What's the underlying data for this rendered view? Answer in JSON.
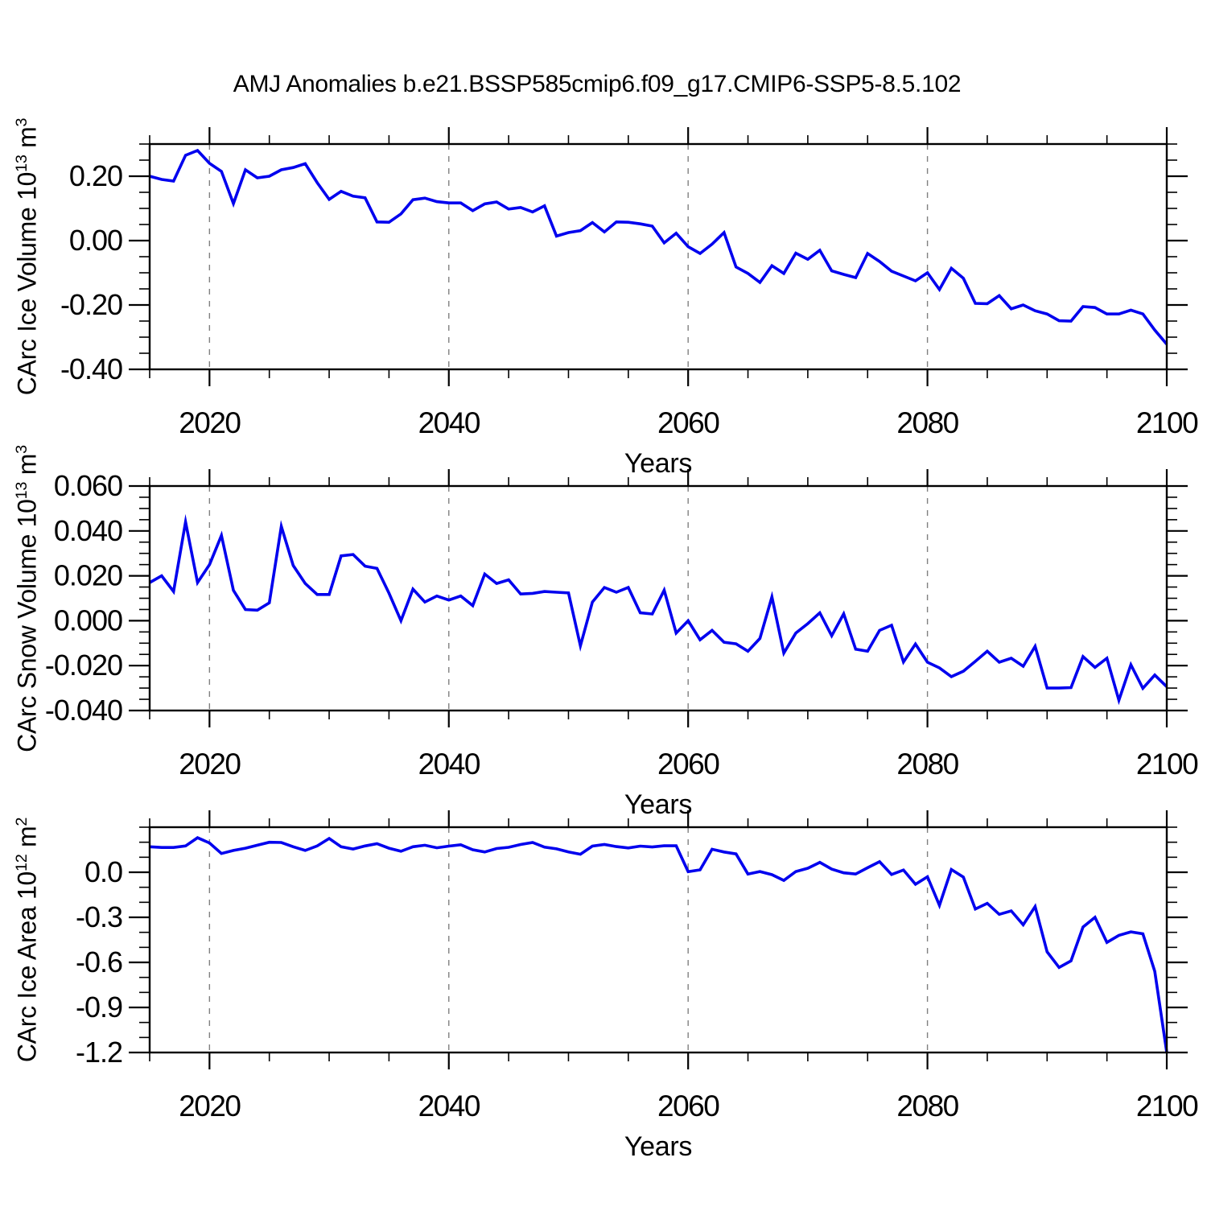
{
  "title": "AMJ Anomalies b.e21.BSSP585cmip6.f09_g17.CMIP6-SSP5-8.5.102",
  "colors": {
    "line": "#0000EE",
    "grid": "#808080",
    "axis": "#000000",
    "background": "#FFFFFF",
    "text": "#000000"
  },
  "x_axis": {
    "label": "Years",
    "start_year": 2015,
    "end_year": 2100,
    "tick_values": [
      2020,
      2040,
      2060,
      2080,
      2100
    ],
    "tick_labels": [
      "2020",
      "2040",
      "2060",
      "2080",
      "2100"
    ],
    "minor_step": 5,
    "gridline_years": [
      2020,
      2040,
      2060,
      2080
    ]
  },
  "chart_data": [
    {
      "type": "line",
      "name": "CArc Ice Volume",
      "ylabel": "CArc Ice Volume 10^13 m^3",
      "ylabel_parts": [
        {
          "t": "CArc Ice Volume 10"
        },
        {
          "t": "13",
          "sup": true
        },
        {
          "t": " m"
        },
        {
          "t": "3",
          "sup": true
        }
      ],
      "ylim": [
        -0.4,
        0.3
      ],
      "ytick_values": [
        0.2,
        0.0,
        -0.2,
        -0.4
      ],
      "ytick_labels": [
        "0.20",
        "0.00",
        "-0.20",
        "-0.40"
      ],
      "y_minor_step": 0.05,
      "x_start": 2015,
      "x_step": 1,
      "values": [
        0.2,
        0.19,
        0.185,
        0.265,
        0.28,
        0.24,
        0.215,
        0.115,
        0.22,
        0.195,
        0.2,
        0.22,
        0.227,
        0.239,
        0.18,
        0.128,
        0.153,
        0.138,
        0.133,
        0.058,
        0.057,
        0.083,
        0.127,
        0.132,
        0.121,
        0.117,
        0.117,
        0.093,
        0.114,
        0.12,
        0.098,
        0.103,
        0.089,
        0.108,
        0.014,
        0.025,
        0.031,
        0.056,
        0.027,
        0.058,
        0.057,
        0.052,
        0.045,
        -0.007,
        0.023,
        -0.019,
        -0.04,
        -0.011,
        0.025,
        -0.082,
        -0.102,
        -0.13,
        -0.078,
        -0.102,
        -0.039,
        -0.058,
        -0.03,
        -0.094,
        -0.105,
        -0.115,
        -0.04,
        -0.065,
        -0.095,
        -0.11,
        -0.125,
        -0.1,
        -0.152,
        -0.086,
        -0.117,
        -0.195,
        -0.196,
        -0.171,
        -0.212,
        -0.2,
        -0.218,
        -0.228,
        -0.249,
        -0.25,
        -0.205,
        -0.208,
        -0.228,
        -0.228,
        -0.216,
        -0.228,
        -0.278,
        -0.322
      ]
    },
    {
      "type": "line",
      "name": "CArc Snow Volume",
      "ylabel": "CArc Snow Volume 10^13 m^3",
      "ylabel_parts": [
        {
          "t": "CArc Snow Volume 10"
        },
        {
          "t": "13",
          "sup": true
        },
        {
          "t": " m"
        },
        {
          "t": "3",
          "sup": true
        }
      ],
      "ylim": [
        -0.04,
        0.06
      ],
      "ytick_values": [
        0.06,
        0.04,
        0.02,
        0.0,
        -0.02,
        -0.04
      ],
      "ytick_labels": [
        "0.060",
        "0.040",
        "0.020",
        "0.000",
        "-0.020",
        "-0.040"
      ],
      "y_minor_step": 0.005,
      "x_start": 2015,
      "x_step": 1,
      "values": [
        0.017,
        0.02,
        0.013,
        0.044,
        0.017,
        0.025,
        0.038,
        0.0135,
        0.005,
        0.0047,
        0.008,
        0.042,
        0.0246,
        0.0166,
        0.0117,
        0.0117,
        0.0289,
        0.0295,
        0.0243,
        0.0233,
        0.0123,
        0.0,
        0.0141,
        0.0083,
        0.011,
        0.0092,
        0.011,
        0.0067,
        0.0208,
        0.0166,
        0.0182,
        0.0119,
        0.0122,
        0.013,
        0.0127,
        0.0124,
        -0.0112,
        0.0083,
        0.0148,
        0.0127,
        0.0148,
        0.0035,
        0.003,
        0.0136,
        -0.0055,
        0.0,
        -0.0085,
        -0.0043,
        -0.0096,
        -0.0103,
        -0.0136,
        -0.0079,
        0.0106,
        -0.0144,
        -0.0055,
        -0.0013,
        0.0035,
        -0.0067,
        0.0031,
        -0.0127,
        -0.0136,
        -0.0043,
        -0.002,
        -0.0184,
        -0.0104,
        -0.0185,
        -0.021,
        -0.0249,
        -0.0225,
        -0.0181,
        -0.0136,
        -0.0185,
        -0.0167,
        -0.0203,
        -0.0114,
        -0.03,
        -0.03,
        -0.0298,
        -0.016,
        -0.0208,
        -0.0167,
        -0.0354,
        -0.0196,
        -0.0301,
        -0.0242,
        -0.0294
      ]
    },
    {
      "type": "line",
      "name": "CArc Ice Area",
      "ylabel": "CArc Ice Area 10^12 m^2",
      "ylabel_parts": [
        {
          "t": "CArc Ice Area 10"
        },
        {
          "t": "12",
          "sup": true
        },
        {
          "t": " m"
        },
        {
          "t": "2",
          "sup": true
        }
      ],
      "ylim": [
        -1.2,
        0.3
      ],
      "ytick_values": [
        0.0,
        -0.3,
        -0.6,
        -0.9,
        -1.2
      ],
      "ytick_labels": [
        "0.0",
        "-0.3",
        "-0.6",
        "-0.9",
        "-1.2"
      ],
      "y_minor_step": 0.1,
      "x_start": 2015,
      "x_step": 1,
      "values": [
        0.17,
        0.165,
        0.165,
        0.175,
        0.23,
        0.195,
        0.125,
        0.145,
        0.16,
        0.18,
        0.2,
        0.198,
        0.17,
        0.145,
        0.175,
        0.225,
        0.17,
        0.155,
        0.175,
        0.19,
        0.16,
        0.14,
        0.17,
        0.18,
        0.163,
        0.174,
        0.183,
        0.15,
        0.135,
        0.158,
        0.166,
        0.185,
        0.198,
        0.167,
        0.156,
        0.135,
        0.12,
        0.174,
        0.185,
        0.171,
        0.162,
        0.174,
        0.168,
        0.176,
        0.176,
        0.004,
        0.016,
        0.153,
        0.135,
        0.122,
        -0.012,
        0.005,
        -0.016,
        -0.054,
        0.005,
        0.027,
        0.066,
        0.021,
        -0.004,
        -0.012,
        0.03,
        0.07,
        -0.015,
        0.015,
        -0.08,
        -0.03,
        -0.22,
        0.018,
        -0.032,
        -0.245,
        -0.207,
        -0.28,
        -0.257,
        -0.35,
        -0.228,
        -0.53,
        -0.634,
        -0.59,
        -0.365,
        -0.3,
        -0.467,
        -0.42,
        -0.397,
        -0.41,
        -0.66,
        -1.2
      ]
    }
  ]
}
